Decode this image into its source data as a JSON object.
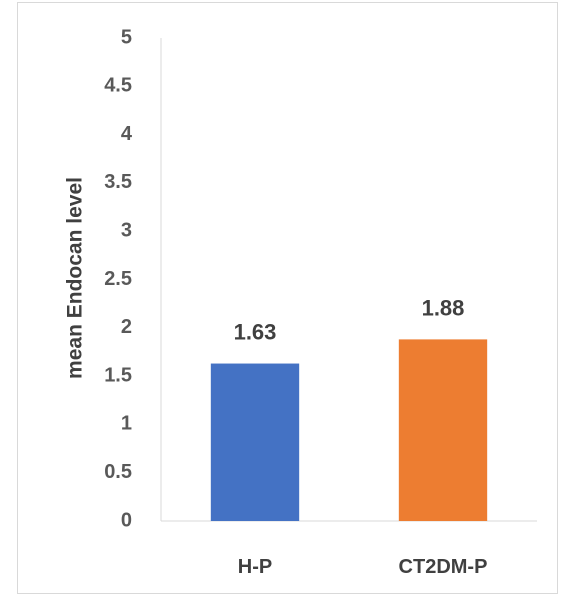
{
  "chart_data": {
    "type": "bar",
    "categories": [
      "H-P",
      "CT2DM-P"
    ],
    "values": [
      1.63,
      1.88
    ],
    "data_labels": [
      "1.63",
      "1.88"
    ],
    "bar_colors": [
      "#4472c4",
      "#ed7d31"
    ],
    "ylabel": "mean Endocan level",
    "xlabel": "",
    "ylim": [
      0,
      5
    ],
    "y_ticks": [
      "0",
      "0.5",
      "1",
      "1.5",
      "2",
      "2.5",
      "3",
      "3.5",
      "4",
      "4.5",
      "5"
    ],
    "grid": false,
    "legend": "none"
  }
}
